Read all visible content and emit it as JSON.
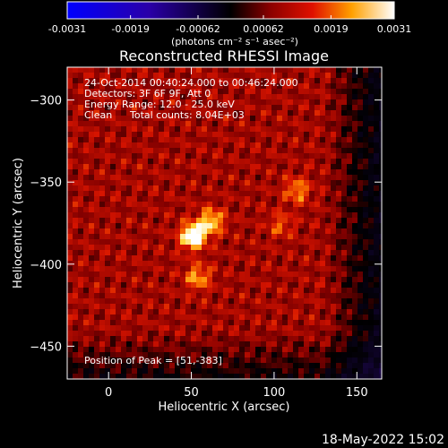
{
  "colorbar": {
    "tick_labels": [
      "-0.0031",
      "-0.0019",
      "-0.00062",
      "0.00062",
      "0.0019",
      "0.0031"
    ],
    "tick_values": [
      -0.0031,
      -0.0019,
      -0.00062,
      0.00062,
      0.0019,
      0.0031
    ],
    "range": [
      -0.0031,
      0.0031
    ],
    "unit_label": "(photons cm⁻² s⁻¹ asec⁻²)"
  },
  "title": "Reconstructed RHESSI Image",
  "annotations": {
    "time_range": "24-Oct-2014 00:40:24.000 to 00:46:24.000",
    "detectors": "Detectors: 3F 6F 9F, Att 0",
    "energy_range": "Energy Range: 12.0 - 25.0 keV",
    "algorithm": "Clean",
    "total_counts": "Total counts: 8.04E+03",
    "peak_position": "Position of Peak = [51,-383]"
  },
  "axes": {
    "x_label": "Heliocentric X (arcsec)",
    "y_label": "Heliocentric Y (arcsec)",
    "x_range": [
      -25,
      165
    ],
    "y_range": [
      -470,
      -280
    ],
    "x_ticks": [
      0,
      50,
      100,
      150
    ],
    "x_tick_labels": [
      "0",
      "50",
      "100",
      "150"
    ],
    "y_ticks": [
      -300,
      -350,
      -400,
      -450
    ],
    "y_tick_labels": [
      "−300",
      "−350",
      "−400",
      "−450"
    ]
  },
  "image": {
    "colormap": "blue-black-red-yellow-white",
    "sources": [
      {
        "x": 51,
        "y": -383,
        "level": 1.0
      },
      {
        "x": 62,
        "y": -374,
        "level": 0.65
      },
      {
        "x": 54,
        "y": -408,
        "level": 0.5
      },
      {
        "x": 114,
        "y": -355,
        "level": 0.45
      },
      {
        "x": 104,
        "y": -376,
        "level": 0.3
      }
    ]
  },
  "footer": {
    "timestamp": "18-May-2022 15:02"
  }
}
